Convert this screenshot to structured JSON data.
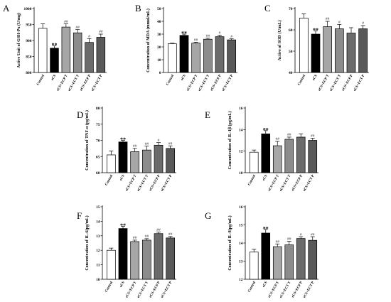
{
  "colors": {
    "control": "#ffffff",
    "ecs": "#000000",
    "ecs_ecp_t": "#a6a6a6",
    "ecs_ect_t": "#8c8c8c",
    "ecs_ecp_p": "#6b6b6b",
    "ecs_ect_p": "#595959"
  },
  "chart_data": [
    {
      "panel": "A",
      "type": "bar",
      "categories": [
        "Control",
        "eCS",
        "eCS+ECP T",
        "eCS+ECT T",
        "eCS+ECP P",
        "eCS+ECT P"
      ],
      "values": [
        938,
        876,
        942,
        924,
        894,
        910
      ],
      "errors": [
        14,
        7,
        10,
        10,
        12,
        10
      ],
      "sig": [
        "",
        "**",
        "##",
        "##",
        "#",
        "##"
      ],
      "ylabel": "Active Unit of GSH-Px (U/mg)",
      "ylim": [
        800,
        1000
      ],
      "yticks": [
        800,
        850,
        900,
        950,
        1000
      ],
      "yticklabels": [
        "800",
        "850",
        "900",
        "950",
        "1000"
      ]
    },
    {
      "panel": "B",
      "type": "bar",
      "categories": [
        "Control",
        "eCS",
        "eCS+ECP T",
        "eCS+ECT T",
        "eCS+ECP P",
        "eCS+ECT P"
      ],
      "values": [
        22.5,
        29,
        23,
        26,
        28,
        25.5
      ],
      "errors": [
        0.4,
        1.0,
        0.6,
        0.8,
        1.2,
        0.8
      ],
      "sig": [
        "",
        "**",
        "##",
        "##",
        "#",
        "#"
      ],
      "ylabel": "Concentration of MDA (mmol/mL)",
      "ylim": [
        0,
        50
      ],
      "yticks": [
        0,
        10,
        20,
        30,
        40,
        50
      ],
      "yticklabels": [
        "0",
        "10",
        "20",
        "30",
        "40",
        "50"
      ]
    },
    {
      "panel": "C",
      "type": "bar",
      "categories": [
        "Control",
        "eCS",
        "eCS+ECP T",
        "eCS+ECT T",
        "eCS+ECP P",
        "eCS+ECT P"
      ],
      "values": [
        65.5,
        58,
        61.5,
        60.5,
        58.5,
        60.5
      ],
      "errors": [
        2,
        1.5,
        2.5,
        2,
        2.5,
        1.5
      ],
      "sig": [
        "",
        "**",
        "##",
        "#",
        "",
        "#"
      ],
      "ylabel": "Active of SOD (U/mL)",
      "ylim": [
        40,
        70
      ],
      "yticks": [
        40,
        50,
        60,
        70
      ],
      "yticklabels": [
        "40",
        "50",
        "60",
        "70"
      ]
    },
    {
      "panel": "D",
      "type": "bar",
      "categories": [
        "Control",
        "eCS",
        "eCS+ECP T",
        "eCS+ECT T",
        "eCS+ECP P",
        "eCS+ECT P"
      ],
      "values": [
        65.5,
        69.5,
        66.5,
        67,
        68.5,
        67.5
      ],
      "errors": [
        1.2,
        0.5,
        1,
        1.2,
        0.8,
        0.8
      ],
      "sig": [
        "",
        "**",
        "##",
        "##",
        "#",
        "##"
      ],
      "ylabel": "Concentration of TNF-α (pg/mL)",
      "ylim": [
        60,
        80
      ],
      "yticks": [
        60,
        65,
        70,
        75,
        80
      ],
      "yticklabels": [
        "60",
        "65",
        "70",
        "75",
        "80"
      ]
    },
    {
      "panel": "E",
      "type": "bar",
      "categories": [
        "Control",
        "eCS",
        "eCS+ECP T",
        "eCS+ECT T",
        "eCS+ECP P",
        "eCS+ECT P"
      ],
      "values": [
        11.9,
        13.6,
        12.5,
        13.1,
        13.3,
        13.0
      ],
      "errors": [
        0.2,
        0.3,
        0.4,
        0.2,
        0.3,
        0.2
      ],
      "sig": [
        "",
        "**",
        "##",
        "##",
        "",
        "##"
      ],
      "ylabel": "Concentration of IL-1β (pg/mL)",
      "ylim": [
        10,
        16
      ],
      "yticks": [
        10,
        12,
        14,
        16
      ],
      "yticklabels": [
        "10",
        "12",
        "14",
        "16"
      ]
    },
    {
      "panel": "F",
      "type": "bar",
      "categories": [
        "Control",
        "eCS",
        "eCS+ECP T",
        "eCS+ECT T",
        "eCS+ECP P",
        "eCS+ECT P"
      ],
      "values": [
        12.0,
        13.5,
        12.6,
        12.7,
        13.15,
        12.85
      ],
      "errors": [
        0.15,
        0.15,
        0.1,
        0.1,
        0.1,
        0.1
      ],
      "sig": [
        "",
        "**",
        "##",
        "##",
        "##",
        "##"
      ],
      "ylabel": "Concentration of IL-6(pg/mL)",
      "ylim": [
        10,
        15
      ],
      "yticks": [
        10,
        11,
        12,
        13,
        14,
        15
      ],
      "yticklabels": [
        "10",
        "11",
        "12",
        "13",
        "14",
        "15"
      ]
    },
    {
      "panel": "G",
      "type": "bar",
      "categories": [
        "Control",
        "eCS",
        "eCS+ECP T",
        "eCS+ECT T",
        "eCS+ECP P",
        "eCS+ECT P"
      ],
      "values": [
        13.5,
        14.55,
        13.8,
        13.9,
        14.25,
        14.15
      ],
      "errors": [
        0.15,
        0.2,
        0.15,
        0.2,
        0.1,
        0.2
      ],
      "sig": [
        "",
        "**",
        "##",
        "##",
        "#",
        "##"
      ],
      "ylabel": "Concentration of IL-8(pg/mL)",
      "ylim": [
        12,
        16
      ],
      "yticks": [
        12,
        13,
        14,
        15,
        16
      ],
      "yticklabels": [
        "12",
        "13",
        "14",
        "15",
        "16"
      ]
    }
  ]
}
